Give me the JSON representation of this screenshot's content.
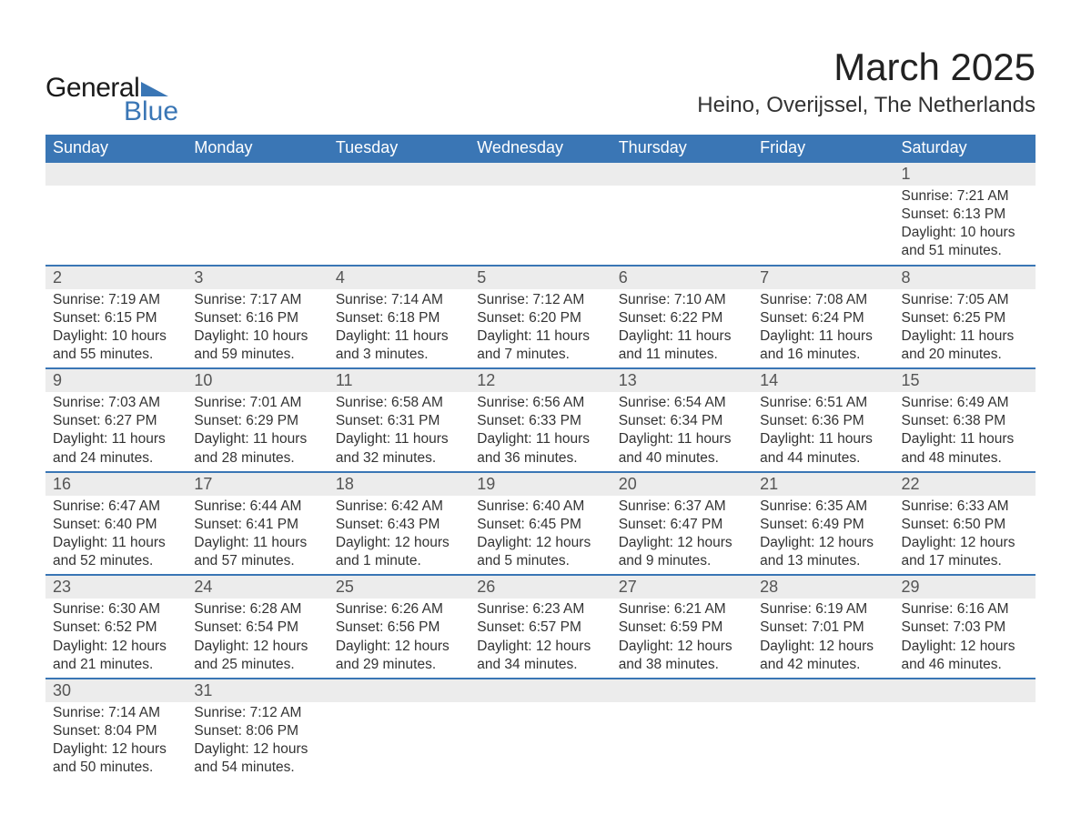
{
  "brand": {
    "name_top": "General",
    "name_bottom": "Blue",
    "triangle_color": "#3a76b5"
  },
  "title": "March 2025",
  "location": "Heino, Overijssel, The Netherlands",
  "colors": {
    "header_bg": "#3a76b5",
    "header_text": "#ffffff",
    "daynum_bg": "#ececec",
    "row_divider": "#3a76b5",
    "body_text": "#333333",
    "page_bg": "#ffffff"
  },
  "typography": {
    "title_fontsize": 42,
    "location_fontsize": 24,
    "header_fontsize": 18,
    "daynum_fontsize": 18,
    "cell_fontsize": 15.5,
    "font_family": "Arial"
  },
  "day_names": [
    "Sunday",
    "Monday",
    "Tuesday",
    "Wednesday",
    "Thursday",
    "Friday",
    "Saturday"
  ],
  "weeks": [
    [
      null,
      null,
      null,
      null,
      null,
      null,
      {
        "day": "1",
        "sunrise": "Sunrise: 7:21 AM",
        "sunset": "Sunset: 6:13 PM",
        "daylight1": "Daylight: 10 hours",
        "daylight2": "and 51 minutes."
      }
    ],
    [
      {
        "day": "2",
        "sunrise": "Sunrise: 7:19 AM",
        "sunset": "Sunset: 6:15 PM",
        "daylight1": "Daylight: 10 hours",
        "daylight2": "and 55 minutes."
      },
      {
        "day": "3",
        "sunrise": "Sunrise: 7:17 AM",
        "sunset": "Sunset: 6:16 PM",
        "daylight1": "Daylight: 10 hours",
        "daylight2": "and 59 minutes."
      },
      {
        "day": "4",
        "sunrise": "Sunrise: 7:14 AM",
        "sunset": "Sunset: 6:18 PM",
        "daylight1": "Daylight: 11 hours",
        "daylight2": "and 3 minutes."
      },
      {
        "day": "5",
        "sunrise": "Sunrise: 7:12 AM",
        "sunset": "Sunset: 6:20 PM",
        "daylight1": "Daylight: 11 hours",
        "daylight2": "and 7 minutes."
      },
      {
        "day": "6",
        "sunrise": "Sunrise: 7:10 AM",
        "sunset": "Sunset: 6:22 PM",
        "daylight1": "Daylight: 11 hours",
        "daylight2": "and 11 minutes."
      },
      {
        "day": "7",
        "sunrise": "Sunrise: 7:08 AM",
        "sunset": "Sunset: 6:24 PM",
        "daylight1": "Daylight: 11 hours",
        "daylight2": "and 16 minutes."
      },
      {
        "day": "8",
        "sunrise": "Sunrise: 7:05 AM",
        "sunset": "Sunset: 6:25 PM",
        "daylight1": "Daylight: 11 hours",
        "daylight2": "and 20 minutes."
      }
    ],
    [
      {
        "day": "9",
        "sunrise": "Sunrise: 7:03 AM",
        "sunset": "Sunset: 6:27 PM",
        "daylight1": "Daylight: 11 hours",
        "daylight2": "and 24 minutes."
      },
      {
        "day": "10",
        "sunrise": "Sunrise: 7:01 AM",
        "sunset": "Sunset: 6:29 PM",
        "daylight1": "Daylight: 11 hours",
        "daylight2": "and 28 minutes."
      },
      {
        "day": "11",
        "sunrise": "Sunrise: 6:58 AM",
        "sunset": "Sunset: 6:31 PM",
        "daylight1": "Daylight: 11 hours",
        "daylight2": "and 32 minutes."
      },
      {
        "day": "12",
        "sunrise": "Sunrise: 6:56 AM",
        "sunset": "Sunset: 6:33 PM",
        "daylight1": "Daylight: 11 hours",
        "daylight2": "and 36 minutes."
      },
      {
        "day": "13",
        "sunrise": "Sunrise: 6:54 AM",
        "sunset": "Sunset: 6:34 PM",
        "daylight1": "Daylight: 11 hours",
        "daylight2": "and 40 minutes."
      },
      {
        "day": "14",
        "sunrise": "Sunrise: 6:51 AM",
        "sunset": "Sunset: 6:36 PM",
        "daylight1": "Daylight: 11 hours",
        "daylight2": "and 44 minutes."
      },
      {
        "day": "15",
        "sunrise": "Sunrise: 6:49 AM",
        "sunset": "Sunset: 6:38 PM",
        "daylight1": "Daylight: 11 hours",
        "daylight2": "and 48 minutes."
      }
    ],
    [
      {
        "day": "16",
        "sunrise": "Sunrise: 6:47 AM",
        "sunset": "Sunset: 6:40 PM",
        "daylight1": "Daylight: 11 hours",
        "daylight2": "and 52 minutes."
      },
      {
        "day": "17",
        "sunrise": "Sunrise: 6:44 AM",
        "sunset": "Sunset: 6:41 PM",
        "daylight1": "Daylight: 11 hours",
        "daylight2": "and 57 minutes."
      },
      {
        "day": "18",
        "sunrise": "Sunrise: 6:42 AM",
        "sunset": "Sunset: 6:43 PM",
        "daylight1": "Daylight: 12 hours",
        "daylight2": "and 1 minute."
      },
      {
        "day": "19",
        "sunrise": "Sunrise: 6:40 AM",
        "sunset": "Sunset: 6:45 PM",
        "daylight1": "Daylight: 12 hours",
        "daylight2": "and 5 minutes."
      },
      {
        "day": "20",
        "sunrise": "Sunrise: 6:37 AM",
        "sunset": "Sunset: 6:47 PM",
        "daylight1": "Daylight: 12 hours",
        "daylight2": "and 9 minutes."
      },
      {
        "day": "21",
        "sunrise": "Sunrise: 6:35 AM",
        "sunset": "Sunset: 6:49 PM",
        "daylight1": "Daylight: 12 hours",
        "daylight2": "and 13 minutes."
      },
      {
        "day": "22",
        "sunrise": "Sunrise: 6:33 AM",
        "sunset": "Sunset: 6:50 PM",
        "daylight1": "Daylight: 12 hours",
        "daylight2": "and 17 minutes."
      }
    ],
    [
      {
        "day": "23",
        "sunrise": "Sunrise: 6:30 AM",
        "sunset": "Sunset: 6:52 PM",
        "daylight1": "Daylight: 12 hours",
        "daylight2": "and 21 minutes."
      },
      {
        "day": "24",
        "sunrise": "Sunrise: 6:28 AM",
        "sunset": "Sunset: 6:54 PM",
        "daylight1": "Daylight: 12 hours",
        "daylight2": "and 25 minutes."
      },
      {
        "day": "25",
        "sunrise": "Sunrise: 6:26 AM",
        "sunset": "Sunset: 6:56 PM",
        "daylight1": "Daylight: 12 hours",
        "daylight2": "and 29 minutes."
      },
      {
        "day": "26",
        "sunrise": "Sunrise: 6:23 AM",
        "sunset": "Sunset: 6:57 PM",
        "daylight1": "Daylight: 12 hours",
        "daylight2": "and 34 minutes."
      },
      {
        "day": "27",
        "sunrise": "Sunrise: 6:21 AM",
        "sunset": "Sunset: 6:59 PM",
        "daylight1": "Daylight: 12 hours",
        "daylight2": "and 38 minutes."
      },
      {
        "day": "28",
        "sunrise": "Sunrise: 6:19 AM",
        "sunset": "Sunset: 7:01 PM",
        "daylight1": "Daylight: 12 hours",
        "daylight2": "and 42 minutes."
      },
      {
        "day": "29",
        "sunrise": "Sunrise: 6:16 AM",
        "sunset": "Sunset: 7:03 PM",
        "daylight1": "Daylight: 12 hours",
        "daylight2": "and 46 minutes."
      }
    ],
    [
      {
        "day": "30",
        "sunrise": "Sunrise: 7:14 AM",
        "sunset": "Sunset: 8:04 PM",
        "daylight1": "Daylight: 12 hours",
        "daylight2": "and 50 minutes."
      },
      {
        "day": "31",
        "sunrise": "Sunrise: 7:12 AM",
        "sunset": "Sunset: 8:06 PM",
        "daylight1": "Daylight: 12 hours",
        "daylight2": "and 54 minutes."
      },
      null,
      null,
      null,
      null,
      null
    ]
  ]
}
